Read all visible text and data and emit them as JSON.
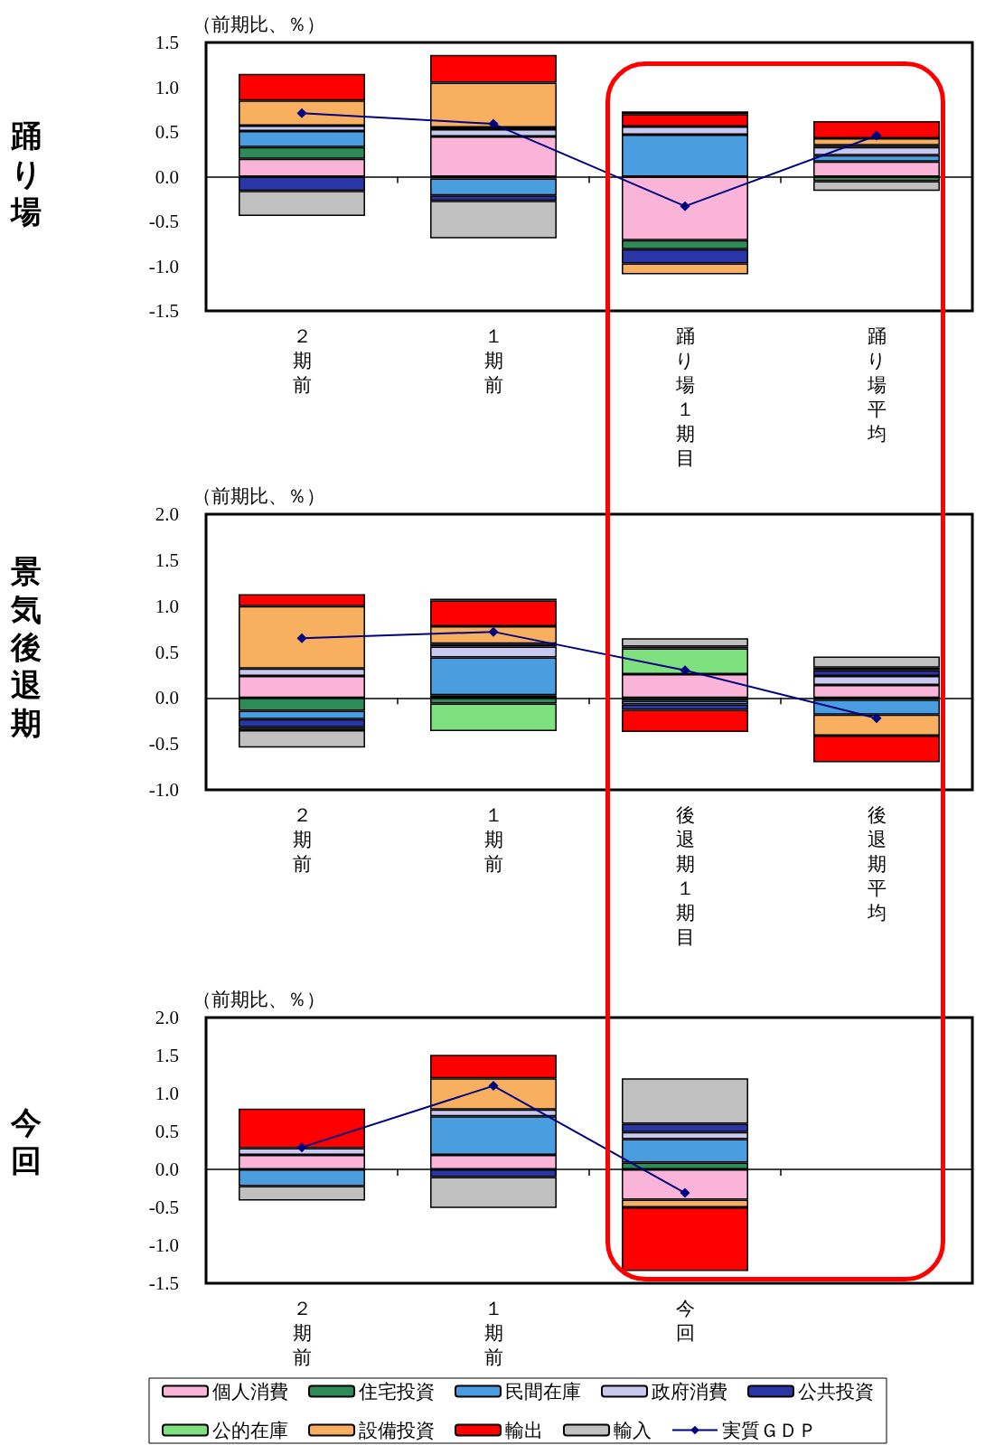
{
  "chart_data": [
    {
      "type": "bar",
      "stacked": true,
      "ylabel": "（前期比、％）",
      "annotations": [
        "踊り場"
      ],
      "marker": "diamond",
      "categories": [
        "２期前",
        "１期前",
        "踊り場１期目",
        "踊り場平均"
      ],
      "ylim": [
        -1.5,
        1.5
      ],
      "yticks": [
        {
          "value": -1.5,
          "label": "-1.5"
        },
        {
          "value": -1,
          "label": "-1.0"
        },
        {
          "value": -0.5,
          "label": "-0.5"
        },
        {
          "value": 0,
          "label": "0.0"
        },
        {
          "value": 0.5,
          "label": "0.5"
        },
        {
          "value": 1,
          "label": "1.0"
        },
        {
          "value": 1.5,
          "label": "1.5"
        }
      ],
      "series": [
        {
          "color": "#f9b4d8",
          "values": [
            0.2,
            0.45,
            -0.71,
            0.17
          ]
        },
        {
          "color": "#2e8b57",
          "values": [
            0.13,
            -0.02,
            -0.1,
            -0.05
          ]
        },
        {
          "color": "#4a9ee0",
          "values": [
            0.18,
            -0.19,
            0.47,
            0.07
          ]
        },
        {
          "color": "#c8c8f0",
          "values": [
            0.06,
            0.08,
            0.09,
            0.09
          ]
        },
        {
          "color": "#2a36a8",
          "values": [
            -0.16,
            -0.06,
            -0.16,
            0.02
          ]
        },
        {
          "color": "#7ee07e",
          "values": [
            null,
            0.02,
            null,
            null
          ]
        },
        {
          "color": "#f8b060",
          "values": [
            0.28,
            0.5,
            -0.12,
            0.08
          ]
        },
        {
          "color": "#ff0000",
          "values": [
            0.3,
            0.31,
            0.14,
            0.19
          ]
        },
        {
          "color": "#c0c0c0",
          "values": [
            -0.28,
            -0.42,
            0.03,
            -0.11
          ]
        },
        {
          "type": "line",
          "color": "#000080",
          "values": [
            0.71,
            0.59,
            -0.33,
            0.46
          ]
        }
      ]
    },
    {
      "type": "bar",
      "stacked": true,
      "ylabel": "（前期比、％）",
      "annotations": [
        "景気後退期"
      ],
      "marker": "diamond",
      "categories": [
        "２期前",
        "１期前",
        "後退期１期目",
        "後退期平均"
      ],
      "ylim": [
        -1,
        2
      ],
      "yticks": [
        {
          "value": -1,
          "label": "-1.0"
        },
        {
          "value": -0.5,
          "label": "-0.5"
        },
        {
          "value": 0,
          "label": "0.0"
        },
        {
          "value": 0.5,
          "label": "0.5"
        },
        {
          "value": 1,
          "label": "1.0"
        },
        {
          "value": 1.5,
          "label": "1.5"
        },
        {
          "value": 2,
          "label": "2.0"
        }
      ],
      "series": [
        {
          "color": "#f9b4d8",
          "values": [
            0.24,
            0.03,
            0.26,
            0.14
          ]
        },
        {
          "color": "#2e8b57",
          "values": [
            -0.14,
            -0.06,
            -0.03,
            -0.02
          ]
        },
        {
          "color": "#4a9ee0",
          "values": [
            -0.09,
            0.41,
            -0.04,
            -0.16
          ]
        },
        {
          "color": "#c8c8f0",
          "values": [
            0.08,
            0.12,
            null,
            0.1
          ]
        },
        {
          "color": "#2a36a8",
          "values": [
            -0.09,
            0.03,
            -0.06,
            0.06
          ]
        },
        {
          "color": "#7ee07e",
          "values": [
            -0.03,
            -0.3,
            0.28,
            0.03
          ]
        },
        {
          "color": "#f8b060",
          "values": [
            0.68,
            0.19,
            0.02,
            -0.23
          ]
        },
        {
          "color": "#ff0000",
          "values": [
            0.13,
            0.28,
            -0.24,
            -0.29
          ]
        },
        {
          "color": "#c0c0c0",
          "values": [
            -0.19,
            0.02,
            0.09,
            0.12
          ]
        },
        {
          "type": "line",
          "color": "#000080",
          "values": [
            0.65,
            0.72,
            0.3,
            -0.22
          ]
        }
      ]
    },
    {
      "type": "bar",
      "stacked": true,
      "ylabel": "（前期比、％）",
      "annotations": [
        "今回"
      ],
      "marker": "diamond",
      "legend": "bottom",
      "categories": [
        "２期前",
        "１期前",
        "今回",
        null
      ],
      "ylim": [
        -1.5,
        2
      ],
      "yticks": [
        {
          "value": -1.5,
          "label": "-1.5"
        },
        {
          "value": -1,
          "label": "-1.0"
        },
        {
          "value": -0.5,
          "label": "-0.5"
        },
        {
          "value": 0,
          "label": "0.0"
        },
        {
          "value": 0.5,
          "label": "0.5"
        },
        {
          "value": 1,
          "label": "1.0"
        },
        {
          "value": 1.5,
          "label": "1.5"
        },
        {
          "value": 2,
          "label": "2.0"
        }
      ],
      "series": [
        {
          "name": "個人消費",
          "color": "#f9b4d8",
          "values": [
            0.19,
            0.19,
            -0.4,
            null
          ]
        },
        {
          "name": "住宅投資",
          "color": "#2e8b57",
          "values": [
            null,
            null,
            0.09,
            null
          ]
        },
        {
          "name": "民間在庫",
          "color": "#4a9ee0",
          "values": [
            -0.22,
            0.51,
            0.31,
            null
          ]
        },
        {
          "name": "政府消費",
          "color": "#c8c8f0",
          "values": [
            0.09,
            0.09,
            0.09,
            null
          ]
        },
        {
          "name": "公共投資",
          "color": "#2a36a8",
          "values": [
            null,
            -0.1,
            0.11,
            null
          ]
        },
        {
          "name": "公的在庫",
          "color": "#7ee07e",
          "values": [
            null,
            null,
            null,
            null
          ]
        },
        {
          "name": "設備投資",
          "color": "#f8b060",
          "values": [
            null,
            0.41,
            -0.1,
            null
          ]
        },
        {
          "name": "輸出",
          "color": "#ff0000",
          "values": [
            0.52,
            0.31,
            -0.84,
            null
          ]
        },
        {
          "name": "輸入",
          "color": "#c0c0c0",
          "values": [
            -0.19,
            -0.41,
            0.6,
            null
          ]
        },
        {
          "name": "実質ＧＤＰ",
          "type": "line",
          "color": "#000080",
          "values": [
            0.29,
            1.1,
            -0.31,
            null
          ]
        }
      ]
    }
  ]
}
